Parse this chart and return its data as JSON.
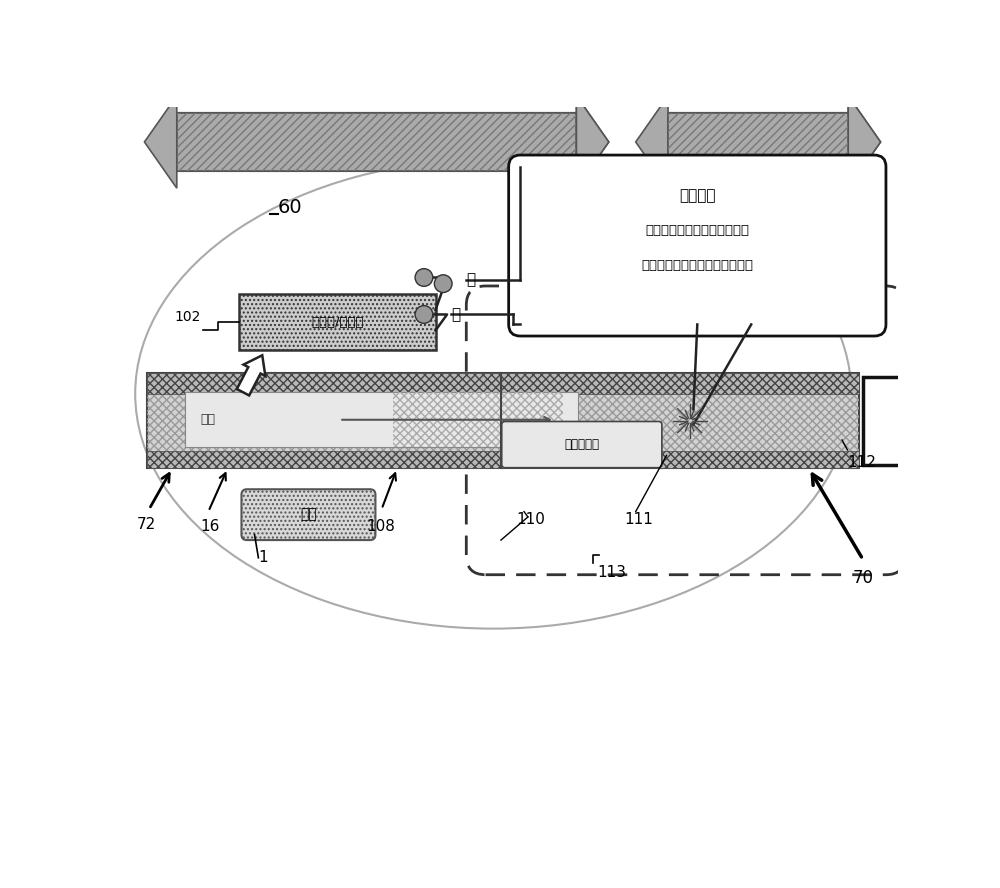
{
  "bg_color": "#ffffff",
  "label_60": "60",
  "label_70": "70",
  "label_72": "72",
  "label_16": "16",
  "label_1": "1",
  "label_102": "102",
  "label_108": "108",
  "label_110": "110",
  "label_111": "111",
  "label_112": "112",
  "label_113": "113",
  "text_controller": "控制器/继电器",
  "text_off": "关",
  "text_on": "开",
  "text_airflow": "气流",
  "text_eliquid": "电子烟液体",
  "text_battery": "电池",
  "text_heating": "加热元件",
  "text_heating_line1": "当香烟控命令继电器使电流能",
  "text_heating_line2": "够通过时，加热能够使粘度降低"
}
